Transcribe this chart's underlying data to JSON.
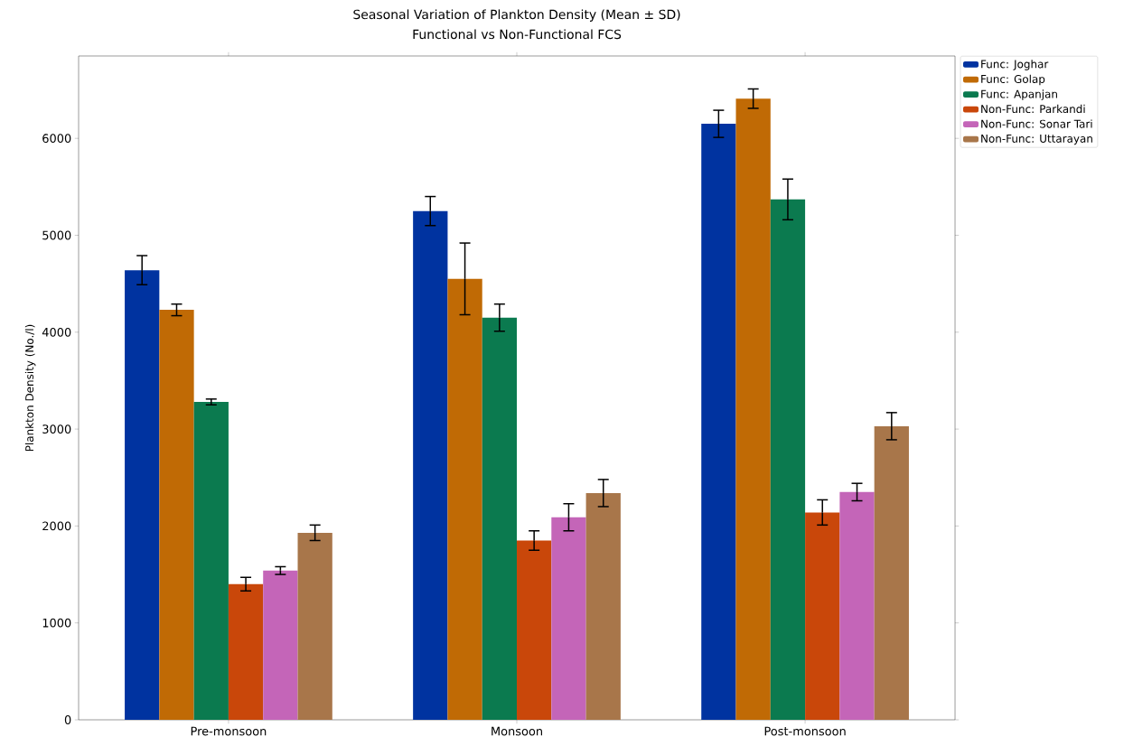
{
  "chart_data": {
    "type": "bar",
    "title": "Seasonal Variation of Plankton Density (Mean ± SD)",
    "subtitle": "Functional vs Non-Functional FCS",
    "ylabel": "Plankton Density (No./l)",
    "categories": [
      "Pre-monsoon",
      "Monsoon",
      "Post-monsoon"
    ],
    "ylim": [
      0,
      6850
    ],
    "yticks": [
      0,
      1000,
      2000,
      3000,
      4000,
      5000,
      6000
    ],
    "legend": "top right",
    "series": [
      {
        "name": "Func: Joghar",
        "color": "#0033a0",
        "values": [
          4640,
          5250,
          6150
        ],
        "errors": [
          150,
          150,
          140
        ]
      },
      {
        "name": "Func: Golap",
        "color": "#c06a05",
        "values": [
          4230,
          4550,
          6410
        ],
        "errors": [
          60,
          370,
          100
        ]
      },
      {
        "name": "Func: Apanjan",
        "color": "#0b7a4f",
        "values": [
          3280,
          4150,
          5370
        ],
        "errors": [
          30,
          140,
          210
        ]
      },
      {
        "name": "Non-Func: Parkandi",
        "color": "#c9470a",
        "values": [
          1400,
          1850,
          2140
        ],
        "errors": [
          70,
          100,
          130
        ]
      },
      {
        "name": "Non-Func: Sonar Tari",
        "color": "#c465b8",
        "values": [
          1540,
          2090,
          2350
        ],
        "errors": [
          40,
          140,
          90
        ]
      },
      {
        "name": "Non-Func: Uttarayan",
        "color": "#a8764a",
        "values": [
          1930,
          2340,
          3030
        ],
        "errors": [
          80,
          140,
          140
        ]
      }
    ]
  }
}
